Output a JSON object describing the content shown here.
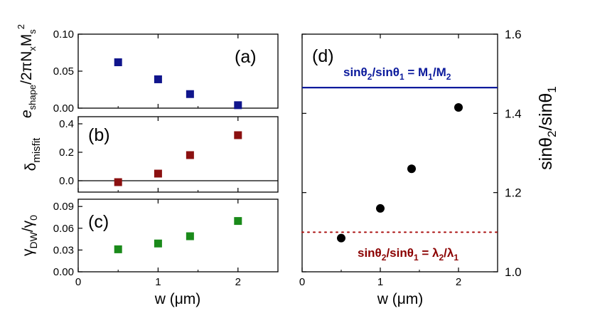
{
  "chart_data": [
    {
      "type": "scatter",
      "panel": "a",
      "tag": "(a)",
      "ylabel_main": "e",
      "ylabel_sub": "shape",
      "ylabel_rest": "/2πN",
      "ylabel_sub2": "x",
      "ylabel_M": "M",
      "ylabel_sub3": "s",
      "ylabel_sup": "2",
      "xlim": [
        0,
        2.5
      ],
      "ylim": [
        0,
        0.1
      ],
      "yticks": [
        0.0,
        0.05,
        0.1
      ],
      "ytick_labels": [
        "0.00",
        "0.05",
        "0.10"
      ],
      "x": [
        0.5,
        1.0,
        1.4,
        2.0
      ],
      "y": [
        0.062,
        0.039,
        0.019,
        0.004
      ],
      "color": "#10158c",
      "marker": "square"
    },
    {
      "type": "scatter",
      "panel": "b",
      "tag": "(b)",
      "ylabel_main": "δ",
      "ylabel_sub": "misfit",
      "xlim": [
        0,
        2.5
      ],
      "ylim": [
        -0.08,
        0.45
      ],
      "yticks": [
        0.0,
        0.2,
        0.4
      ],
      "ytick_labels": [
        "0.0",
        "0.2",
        "0.4"
      ],
      "zero_line": true,
      "x": [
        0.5,
        1.0,
        1.4,
        2.0
      ],
      "y": [
        -0.01,
        0.05,
        0.18,
        0.32
      ],
      "color": "#8b1010",
      "marker": "square"
    },
    {
      "type": "scatter",
      "panel": "c",
      "tag": "(c)",
      "ylabel_main": "γ",
      "ylabel_sub": "DW",
      "ylabel_rest": "/γ",
      "ylabel_sub2": "0",
      "xlim": [
        0,
        2.5
      ],
      "ylim": [
        0,
        0.1
      ],
      "yticks": [
        0.0,
        0.03,
        0.06,
        0.09
      ],
      "ytick_labels": [
        "0.00",
        "0.03",
        "0.06",
        "0.09"
      ],
      "x": [
        0.5,
        1.0,
        1.4,
        2.0
      ],
      "y": [
        0.031,
        0.039,
        0.049,
        0.07
      ],
      "color": "#1a8a1a",
      "marker": "square"
    },
    {
      "type": "scatter",
      "panel": "d",
      "tag": "(d)",
      "ylabel": "sinθ2/sinθ1",
      "ylabel_parts": [
        "sinθ",
        "2",
        "/sinθ",
        "1"
      ],
      "xlabel": "w (μm)",
      "xlim": [
        0,
        2.5
      ],
      "ylim": [
        1.0,
        1.6
      ],
      "yticks": [
        1.0,
        1.2,
        1.4,
        1.6
      ],
      "ytick_labels": [
        "1.0",
        "1.2",
        "1.4",
        "1.6"
      ],
      "x": [
        0.5,
        1.0,
        1.4,
        2.0
      ],
      "y": [
        1.085,
        1.16,
        1.26,
        1.415
      ],
      "color": "#000000",
      "marker": "circle",
      "hline_blue": {
        "y": 1.465,
        "color": "#0b1a9c",
        "label_parts": [
          "sinθ",
          "2",
          "/sinθ",
          "1",
          " = M",
          "1",
          "/M",
          "2"
        ]
      },
      "hline_red": {
        "y": 1.1,
        "color": "#aa1111",
        "style": "dotted",
        "label_parts": [
          "sinθ",
          "2",
          "/sinθ",
          "1",
          " = λ",
          "2",
          "/λ",
          "1"
        ]
      }
    }
  ],
  "shared_x": {
    "xlabel": "w (μm)",
    "xticks": [
      0,
      1,
      2
    ],
    "xtick_labels": [
      "0",
      "1",
      "2"
    ]
  }
}
